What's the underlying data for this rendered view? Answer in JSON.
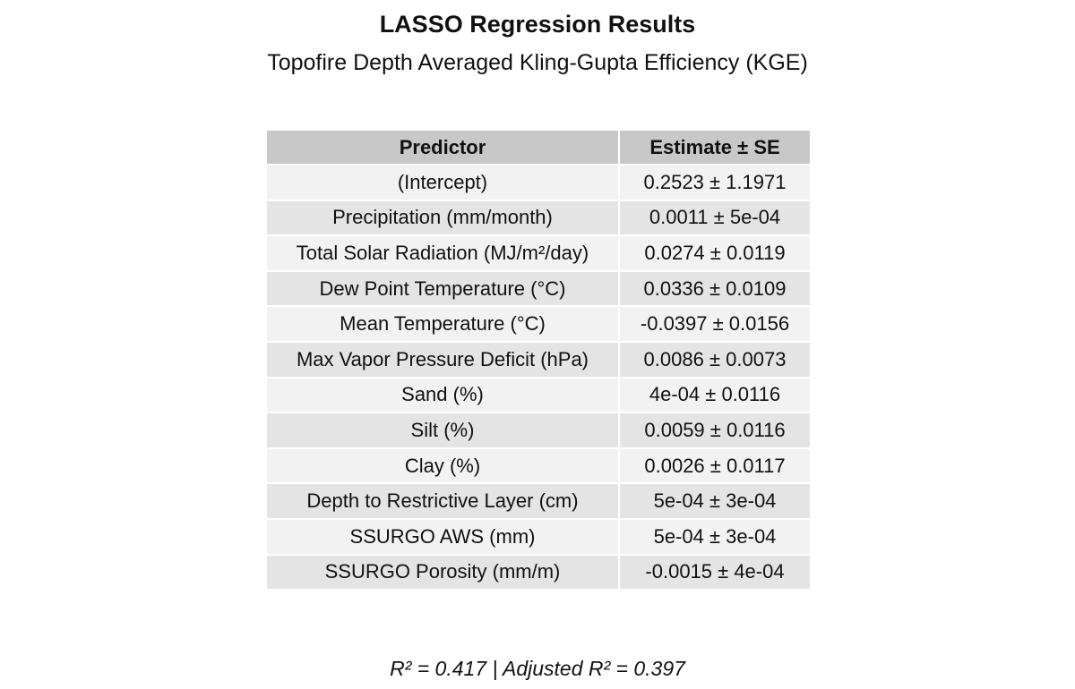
{
  "title": "LASSO Regression Results",
  "subtitle": "Topofire Depth Averaged Kling-Gupta Efficiency (KGE)",
  "table": {
    "headers": [
      "Predictor",
      "Estimate ± SE"
    ],
    "rows": [
      {
        "predictor": "(Intercept)",
        "estimate": "0.2523 ± 1.1971"
      },
      {
        "predictor": "Precipitation (mm/month)",
        "estimate": "0.0011 ± 5e-04"
      },
      {
        "predictor": "Total Solar Radiation (MJ/m²/day)",
        "estimate": "0.0274 ± 0.0119"
      },
      {
        "predictor": "Dew Point Temperature (°C)",
        "estimate": "0.0336 ± 0.0109"
      },
      {
        "predictor": "Mean Temperature (°C)",
        "estimate": "-0.0397 ± 0.0156"
      },
      {
        "predictor": "Max Vapor Pressure Deficit (hPa)",
        "estimate": "0.0086 ± 0.0073"
      },
      {
        "predictor": "Sand (%)",
        "estimate": "4e-04 ± 0.0116"
      },
      {
        "predictor": "Silt (%)",
        "estimate": "0.0059 ± 0.0116"
      },
      {
        "predictor": "Clay (%)",
        "estimate": "0.0026 ± 0.0117"
      },
      {
        "predictor": "Depth to Restrictive Layer (cm)",
        "estimate": "5e-04 ± 3e-04"
      },
      {
        "predictor": "SSURGO AWS (mm)",
        "estimate": "5e-04 ± 3e-04"
      },
      {
        "predictor": "SSURGO Porosity (mm/m)",
        "estimate": "-0.0015 ± 4e-04"
      }
    ]
  },
  "footnote": "R² = 0.417 | Adjusted R² = 0.397",
  "colors": {
    "header_bg": "#c8c8c8",
    "row_light": "#f2f2f2",
    "row_dark": "#e4e4e4"
  }
}
